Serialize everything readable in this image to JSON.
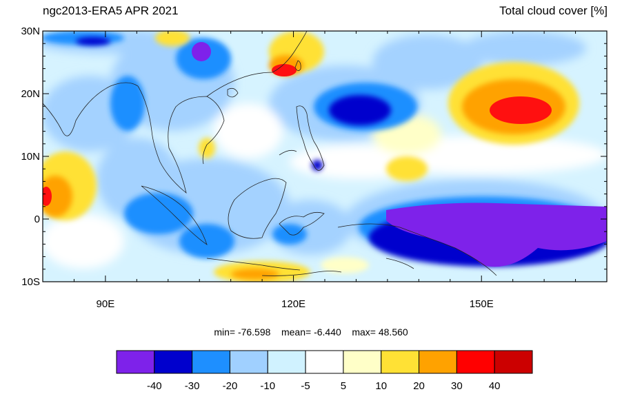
{
  "header": {
    "left_title": "ngc2013-ERA5 APR 2021",
    "right_title": "Total cloud cover [%]"
  },
  "axes": {
    "lat_labels": [
      {
        "value": 30,
        "label": "30N"
      },
      {
        "value": 20,
        "label": "20N"
      },
      {
        "value": 10,
        "label": "10N"
      },
      {
        "value": 0,
        "label": "0"
      },
      {
        "value": -10,
        "label": "10S"
      }
    ],
    "lon_labels": [
      {
        "value": 90,
        "label": "90E"
      },
      {
        "value": 120,
        "label": "120E"
      },
      {
        "value": 150,
        "label": "150E"
      }
    ],
    "lon_range": [
      80,
      170
    ],
    "lat_range": [
      -10,
      30
    ]
  },
  "stats": {
    "min_label": "min=",
    "min_value": "-76.598",
    "mean_label": "mean=",
    "mean_value": "-6.440",
    "max_label": "max=",
    "max_value": "48.560"
  },
  "colorbar": {
    "colors": [
      "#7e22ea",
      "#0000cd",
      "#1e8fff",
      "#a0d0ff",
      "#d0f2ff",
      "#ffffff",
      "#ffffc8",
      "#ffe135",
      "#ffa200",
      "#ff0000",
      "#cc0000"
    ],
    "labels": [
      "-40",
      "-30",
      "-20",
      "-10",
      "-5",
      "5",
      "10",
      "20",
      "30",
      "40"
    ]
  }
}
